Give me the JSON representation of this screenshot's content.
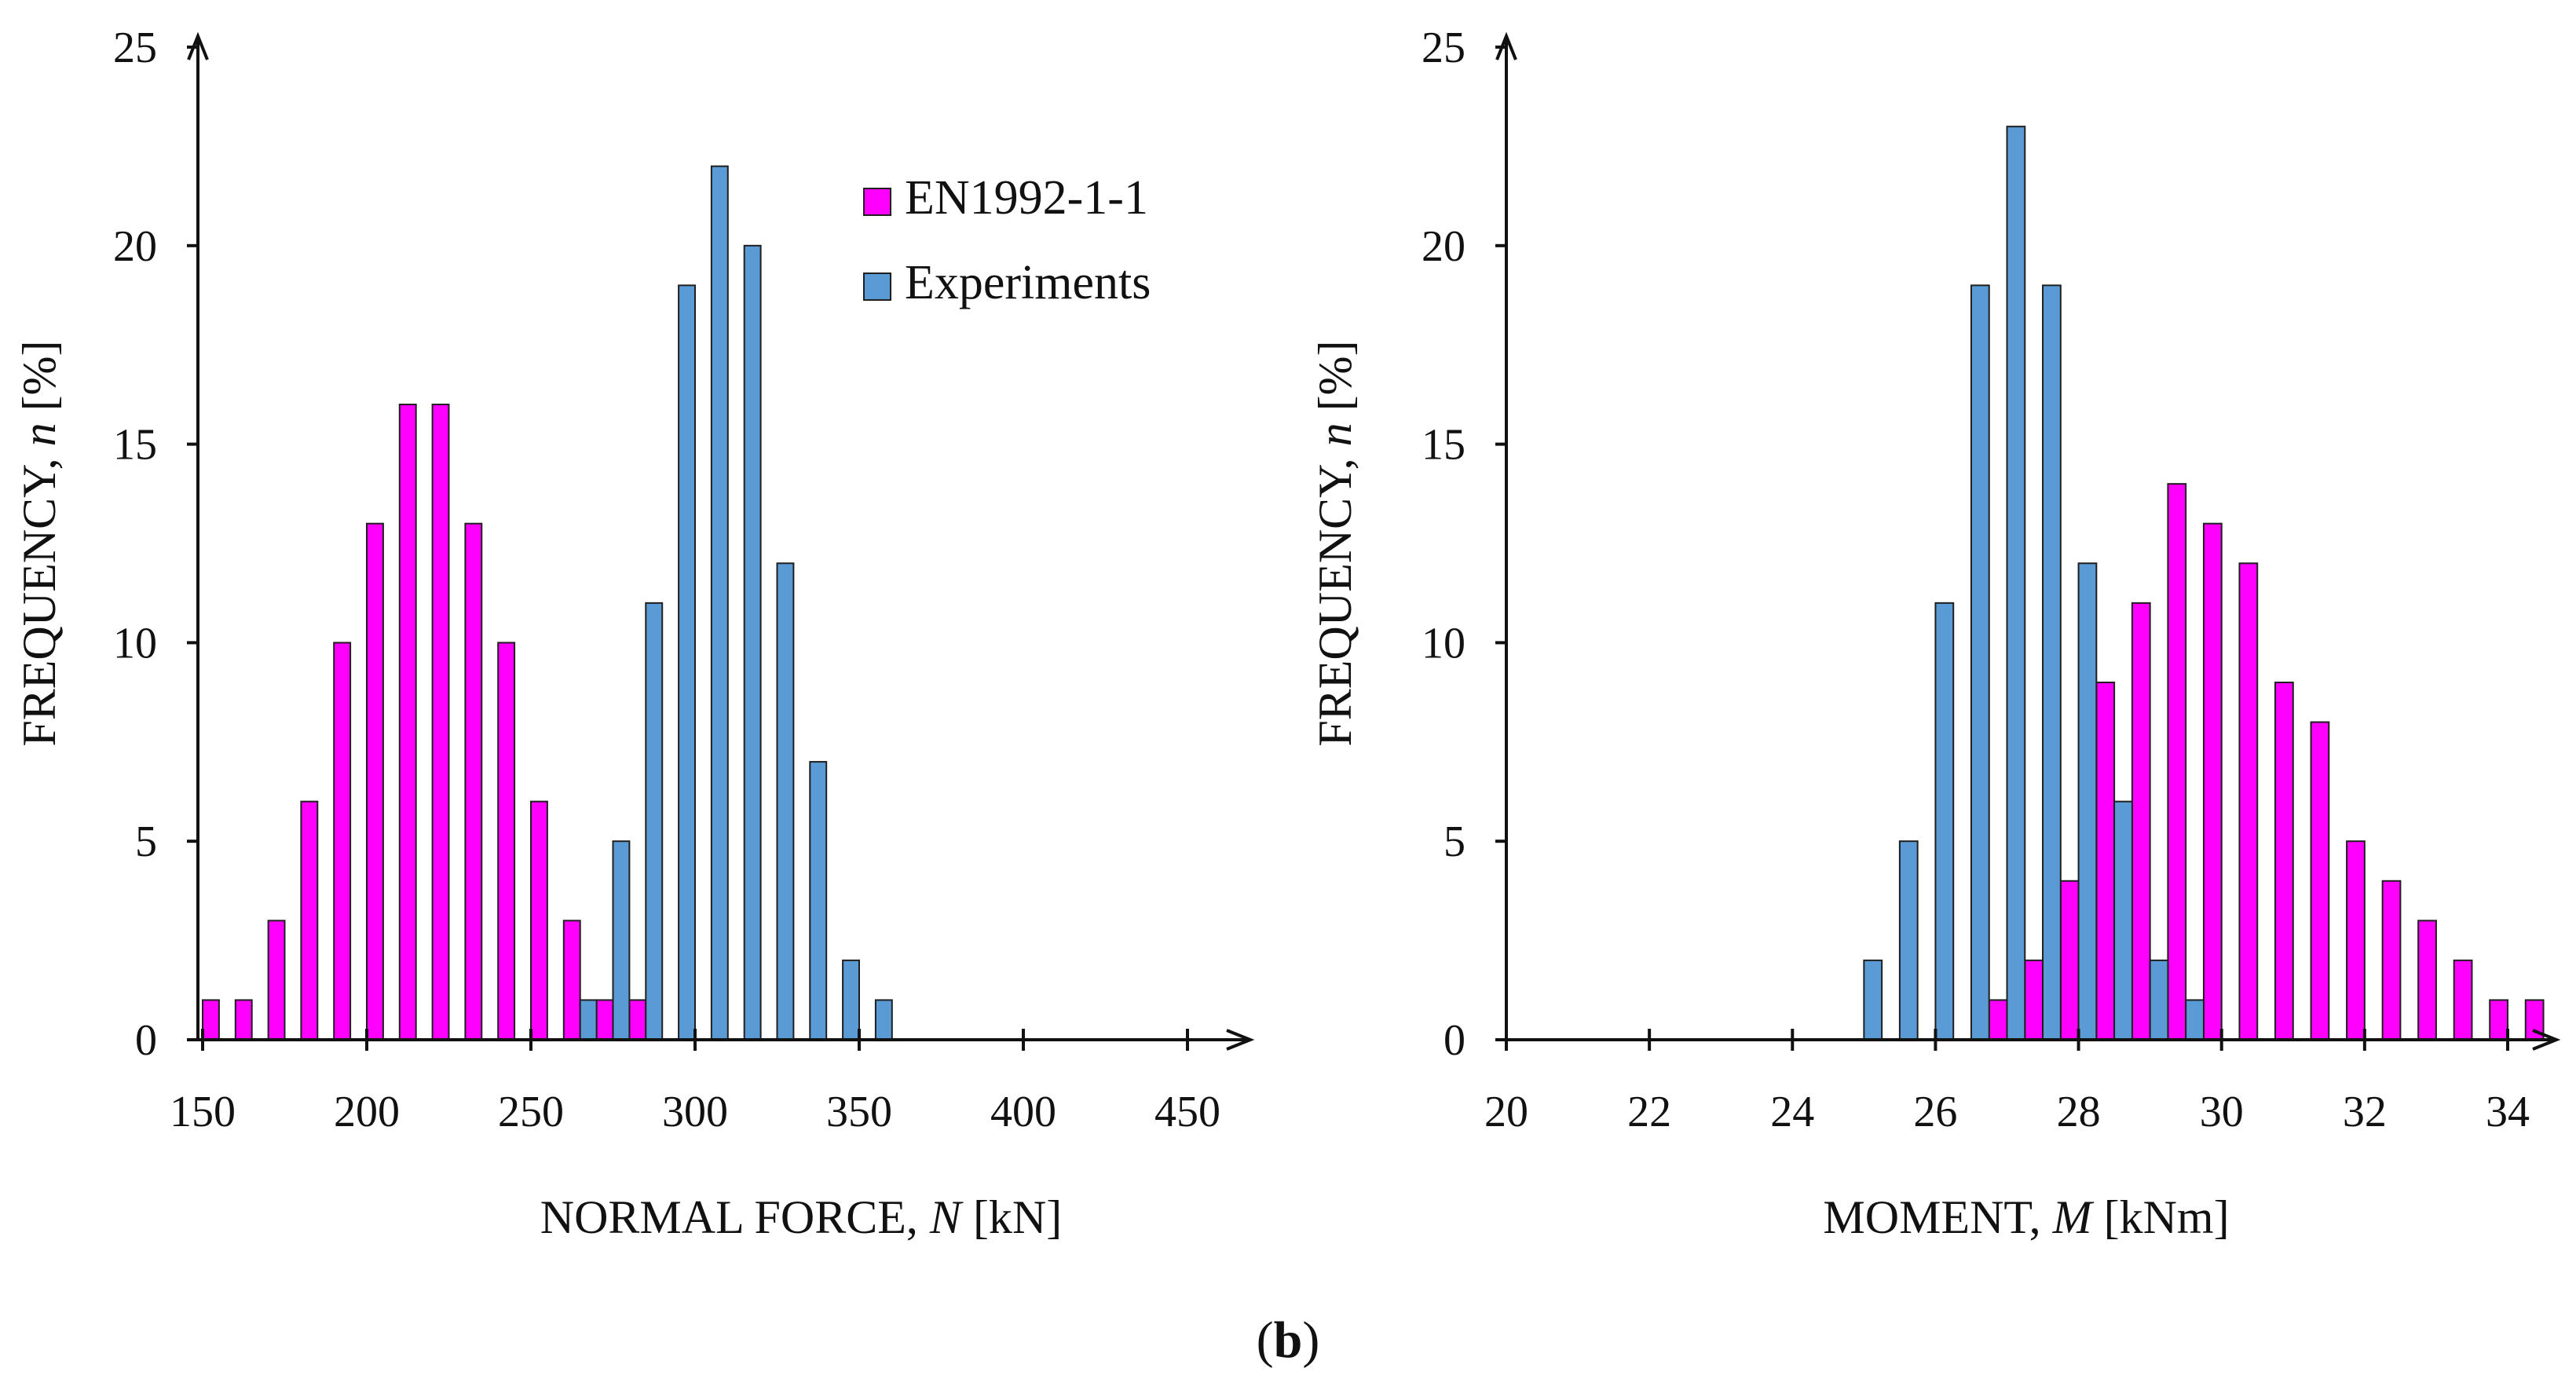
{
  "colors": {
    "en1992": "#ff00ff",
    "experiments": "#5b9bd5",
    "bar_edge": "#1f1f1f",
    "axis": "#111111"
  },
  "caption": {
    "open": "(",
    "letter": "b",
    "close": ")"
  },
  "chart_data": [
    {
      "type": "bar",
      "title": "",
      "xlabel_prefix": "NORMAL FORCE, ",
      "xlabel_var": "N",
      "xlabel_suffix": " [kN]",
      "ylabel_prefix": "FREQUENCY, ",
      "ylabel_var": "n",
      "ylabel_suffix": " [%]",
      "xlim": [
        150,
        460
      ],
      "ylim": [
        0,
        25
      ],
      "bin_width": 10,
      "x_ticks": [
        150,
        200,
        250,
        300,
        350,
        400,
        450
      ],
      "y_ticks": [
        0,
        5,
        10,
        15,
        20,
        25
      ],
      "legend": {
        "position": "top-right",
        "entries": [
          "EN1992-1-1",
          "Experiments"
        ]
      },
      "series": [
        {
          "name": "EN1992-1-1",
          "color_key": "en1992",
          "offset": 0,
          "bins": [
            155,
            165,
            175,
            185,
            195,
            205,
            215,
            225,
            235,
            245,
            255,
            265,
            275,
            285
          ],
          "values": [
            1,
            1,
            3,
            6,
            10,
            13,
            16,
            16,
            13,
            10,
            6,
            3,
            1,
            1
          ]
        },
        {
          "name": "Experiments",
          "color_key": "experiments",
          "offset": 1,
          "bins": [
            265,
            275,
            285,
            295,
            305,
            315,
            325,
            335,
            345,
            355
          ],
          "values": [
            1,
            5,
            11,
            19,
            22,
            20,
            12,
            7,
            2,
            1
          ]
        }
      ]
    },
    {
      "type": "bar",
      "title": "",
      "xlabel_prefix": "MOMENT, ",
      "xlabel_var": "M",
      "xlabel_suffix": " [kNm]",
      "ylabel_prefix": "FREQUENCY, ",
      "ylabel_var": "n",
      "ylabel_suffix": " [%]",
      "xlim": [
        20,
        35
      ],
      "ylim": [
        0,
        25
      ],
      "bin_width": 0.5,
      "x_ticks": [
        20,
        22,
        24,
        26,
        28,
        30,
        32,
        34
      ],
      "y_ticks": [
        0,
        5,
        10,
        15,
        20,
        25
      ],
      "legend": null,
      "series": [
        {
          "name": "EN1992-1-1",
          "color_key": "en1992",
          "offset": 1,
          "bins": [
            26.75,
            27.25,
            27.75,
            28.25,
            28.75,
            29.25,
            29.75,
            30.25,
            30.75,
            31.25,
            31.75,
            32.25,
            32.75,
            33.25,
            33.75,
            34.25
          ],
          "values": [
            1,
            2,
            4,
            9,
            11,
            14,
            13,
            12,
            9,
            8,
            5,
            4,
            3,
            2,
            1,
            1
          ]
        },
        {
          "name": "Experiments",
          "color_key": "experiments",
          "offset": 0,
          "bins": [
            25.25,
            25.75,
            26.25,
            26.75,
            27.25,
            27.75,
            28.25,
            28.75,
            29.25,
            29.75
          ],
          "values": [
            2,
            5,
            11,
            19,
            23,
            19,
            12,
            6,
            2,
            1
          ]
        }
      ]
    }
  ]
}
